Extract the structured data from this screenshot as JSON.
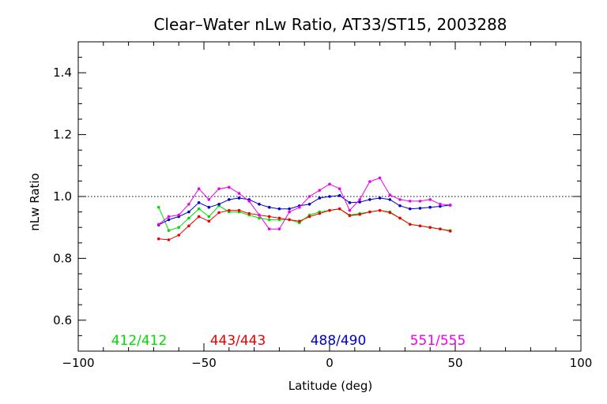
{
  "chart_data": {
    "type": "line",
    "title": "Clear–Water nLw Ratio, AT33/ST15, 2003288",
    "xlabel": "Latitude (deg)",
    "ylabel": "nLw Ratio",
    "xlim": [
      -100,
      100
    ],
    "ylim": [
      0.5,
      1.5
    ],
    "xticks": [
      -100,
      -50,
      0,
      50,
      100
    ],
    "xtick_labels": [
      "−100",
      "−50",
      "0",
      "50",
      "100"
    ],
    "yticks": [
      0.6,
      0.8,
      1.0,
      1.2,
      1.4
    ],
    "ytick_labels": [
      "0.6",
      "0.8",
      "1.0",
      "1.2",
      "1.4"
    ],
    "reference_line": 1.0,
    "grid": false,
    "legend_position": "bottom",
    "series": [
      {
        "name": "412/412",
        "color": "#00dd00",
        "x": [
          -68,
          -64,
          -60,
          -56,
          -52,
          -48,
          -44,
          -40,
          -36,
          -32,
          -28,
          -24,
          -20,
          -16,
          -12,
          -8,
          -4,
          0,
          4,
          8,
          12,
          16,
          20,
          24,
          28,
          32,
          36,
          40,
          44,
          48
        ],
        "y": [
          0.965,
          0.89,
          0.9,
          0.93,
          0.96,
          0.935,
          0.97,
          0.95,
          0.95,
          0.94,
          0.93,
          0.925,
          0.925,
          0.925,
          0.915,
          0.94,
          0.95,
          0.955,
          0.96,
          0.94,
          0.945,
          0.95,
          0.955,
          0.95,
          0.93,
          0.91,
          0.905,
          0.9,
          0.895,
          0.89
        ]
      },
      {
        "name": "443/443",
        "color": "#ee0000",
        "x": [
          -68,
          -64,
          -60,
          -56,
          -52,
          -48,
          -44,
          -40,
          -36,
          -32,
          -28,
          -24,
          -20,
          -16,
          -12,
          -8,
          -4,
          0,
          4,
          8,
          12,
          16,
          20,
          24,
          28,
          32,
          36,
          40,
          44,
          48
        ],
        "y": [
          0.863,
          0.86,
          0.875,
          0.905,
          0.935,
          0.92,
          0.948,
          0.955,
          0.955,
          0.945,
          0.94,
          0.935,
          0.93,
          0.925,
          0.92,
          0.935,
          0.945,
          0.955,
          0.96,
          0.938,
          0.942,
          0.95,
          0.955,
          0.948,
          0.93,
          0.91,
          0.905,
          0.9,
          0.895,
          0.888
        ]
      },
      {
        "name": "488/490",
        "color": "#0000cc",
        "x": [
          -68,
          -64,
          -60,
          -56,
          -52,
          -48,
          -44,
          -40,
          -36,
          -32,
          -28,
          -24,
          -20,
          -16,
          -12,
          -8,
          -4,
          0,
          4,
          8,
          12,
          16,
          20,
          24,
          28,
          32,
          36,
          40,
          44,
          48
        ],
        "y": [
          0.908,
          0.925,
          0.935,
          0.95,
          0.98,
          0.965,
          0.975,
          0.99,
          0.995,
          0.99,
          0.975,
          0.965,
          0.96,
          0.96,
          0.97,
          0.975,
          0.995,
          1.0,
          1.003,
          0.98,
          0.982,
          0.99,
          0.995,
          0.99,
          0.97,
          0.96,
          0.962,
          0.965,
          0.968,
          0.972
        ]
      },
      {
        "name": "551/555",
        "color": "#ee00ee",
        "x": [
          -68,
          -64,
          -60,
          -56,
          -52,
          -48,
          -44,
          -40,
          -36,
          -32,
          -28,
          -24,
          -20,
          -16,
          -12,
          -8,
          -4,
          0,
          4,
          8,
          12,
          16,
          20,
          24,
          28,
          32,
          36,
          40,
          44,
          48
        ],
        "y": [
          0.91,
          0.935,
          0.94,
          0.975,
          1.025,
          0.99,
          1.025,
          1.03,
          1.01,
          0.985,
          0.94,
          0.895,
          0.895,
          0.95,
          0.965,
          1.0,
          1.02,
          1.04,
          1.025,
          0.955,
          0.99,
          1.048,
          1.06,
          1.005,
          0.99,
          0.985,
          0.985,
          0.99,
          0.975,
          0.972
        ]
      }
    ]
  }
}
